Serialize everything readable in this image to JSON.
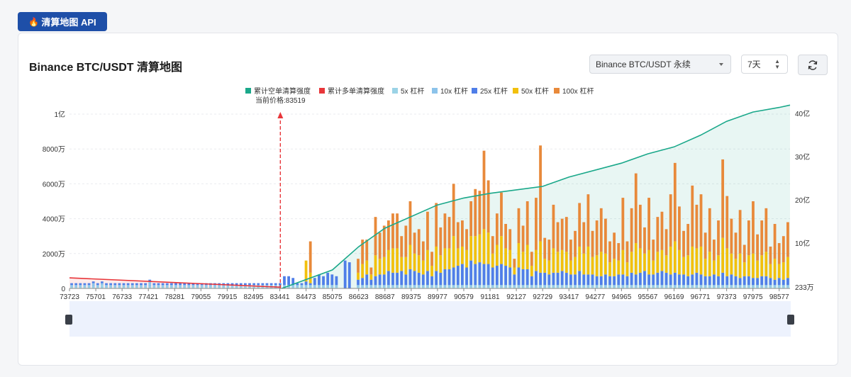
{
  "tag": {
    "label": "清算地图 API"
  },
  "card": {
    "title": "Binance BTC/USDT 清算地图",
    "exchange_select": "Binance BTC/USDT 永续",
    "period_select": "7天"
  },
  "colors": {
    "cum_short": "#1aa88a",
    "cum_long": "#e8363a",
    "lev5": "#9bd3e6",
    "lev10": "#8cc3ea",
    "lev25": "#4f7ee8",
    "lev50": "#f2c00c",
    "lev100": "#e8893a"
  },
  "chart_data": {
    "type": "bar",
    "current_price_label": "当前价格:83519",
    "current_price": 83519,
    "legend": [
      "累计空单清算强度",
      "累计多单清算强度",
      "5x 杠杆",
      "10x 杠杆",
      "25x 杠杆",
      "50x 杠杆",
      "100x 杠杆"
    ],
    "x_ticks": [
      "73723",
      "75701",
      "76733",
      "77421",
      "78281",
      "79055",
      "79915",
      "82495",
      "83441",
      "84473",
      "85075",
      "86623",
      "88687",
      "89375",
      "89977",
      "90579",
      "91181",
      "92127",
      "92729",
      "93417",
      "94277",
      "94965",
      "95567",
      "96169",
      "96771",
      "97373",
      "97975",
      "98577"
    ],
    "y_left_ticks": [
      "0",
      "2000万",
      "4000万",
      "6000万",
      "8000万",
      "1亿"
    ],
    "y_left_range": [
      0,
      100000000
    ],
    "y_right_ticks": [
      "233万",
      "10亿",
      "20亿",
      "30亿",
      "40亿"
    ],
    "y_right_range": [
      2330000,
      4000000000
    ],
    "series": [
      {
        "name": "100x 杠杆",
        "values": [
          0,
          0,
          0,
          0,
          0,
          0,
          0,
          0,
          0,
          0,
          0,
          0,
          0,
          0,
          0,
          0,
          0,
          0,
          0,
          0,
          0,
          0,
          0,
          0,
          0,
          0,
          0,
          0,
          0,
          0,
          0,
          0,
          0,
          0,
          0,
          0,
          0,
          0,
          0,
          0,
          0,
          0,
          0,
          0,
          0,
          0,
          0,
          0,
          0,
          0,
          0,
          0,
          0,
          0,
          0,
          18000000,
          0,
          0,
          0,
          0,
          0,
          0,
          0,
          0,
          0,
          0,
          8000000,
          14000000,
          12000000,
          4000000,
          22000000,
          15000000,
          18000000,
          17000000,
          20000000,
          20000000,
          12000000,
          18000000,
          25000000,
          12000000,
          15000000,
          11000000,
          22000000,
          8000000,
          25000000,
          16000000,
          20000000,
          18000000,
          30000000,
          15000000,
          15000000,
          12000000,
          20000000,
          27000000,
          25000000,
          45000000,
          30000000,
          10000000,
          18000000,
          25000000,
          14000000,
          12000000,
          5000000,
          20000000,
          15000000,
          25000000,
          8000000,
          30000000,
          55000000,
          12000000,
          12000000,
          25000000,
          17000000,
          18000000,
          20000000,
          12000000,
          15000000,
          25000000,
          18000000,
          30000000,
          15000000,
          20000000,
          25000000,
          20000000,
          12000000,
          15000000,
          10000000,
          30000000,
          12000000,
          25000000,
          40000000,
          25000000,
          15000000,
          30000000,
          12000000,
          20000000,
          22000000,
          15000000,
          30000000,
          45000000,
          25000000,
          15000000,
          18000000,
          35000000,
          25000000,
          30000000,
          15000000,
          25000000,
          12000000,
          20000000,
          45000000,
          30000000,
          20000000,
          15000000,
          25000000,
          10000000,
          20000000,
          30000000,
          15000000,
          20000000,
          25000000,
          10000000,
          20000000,
          12000000,
          15000000,
          20000000
        ]
      },
      {
        "name": "50x 杠杆",
        "values": [
          0,
          0,
          0,
          0,
          0,
          0,
          0,
          0,
          0,
          0,
          0,
          0,
          0,
          0,
          0,
          0,
          0,
          0,
          0,
          0,
          0,
          0,
          0,
          0,
          0,
          0,
          0,
          0,
          0,
          0,
          0,
          0,
          0,
          0,
          0,
          0,
          0,
          0,
          0,
          0,
          0,
          0,
          0,
          0,
          0,
          0,
          0,
          0,
          0,
          0,
          0,
          0,
          0,
          0,
          12000000,
          6000000,
          0,
          0,
          0,
          0,
          0,
          0,
          0,
          0,
          0,
          0,
          4000000,
          8000000,
          8000000,
          3000000,
          12000000,
          9000000,
          10000000,
          12000000,
          14000000,
          14000000,
          8000000,
          10000000,
          14000000,
          10000000,
          10000000,
          8000000,
          12000000,
          6000000,
          14000000,
          10000000,
          12000000,
          12000000,
          18000000,
          10000000,
          10000000,
          10000000,
          14000000,
          16000000,
          16000000,
          20000000,
          18000000,
          8000000,
          12000000,
          16000000,
          10000000,
          10000000,
          4000000,
          14000000,
          10000000,
          14000000,
          6000000,
          12000000,
          18000000,
          8000000,
          8000000,
          14000000,
          12000000,
          12000000,
          12000000,
          8000000,
          10000000,
          14000000,
          12000000,
          16000000,
          10000000,
          12000000,
          14000000,
          12000000,
          8000000,
          10000000,
          8000000,
          14000000,
          8000000,
          12000000,
          18000000,
          14000000,
          10000000,
          14000000,
          8000000,
          12000000,
          12000000,
          10000000,
          16000000,
          18000000,
          14000000,
          10000000,
          12000000,
          16000000,
          14000000,
          16000000,
          10000000,
          14000000,
          8000000,
          12000000,
          20000000,
          16000000,
          12000000,
          10000000,
          14000000,
          8000000,
          12000000,
          14000000,
          10000000,
          12000000,
          14000000,
          8000000,
          12000000,
          8000000,
          10000000,
          12000000
        ]
      },
      {
        "name": "25x 杠杆",
        "values": [
          1000000,
          1000000,
          1000000,
          1000000,
          1000000,
          1000000,
          1000000,
          1000000,
          1000000,
          1000000,
          1000000,
          1000000,
          1000000,
          1000000,
          1000000,
          1000000,
          1000000,
          1000000,
          1000000,
          1000000,
          1000000,
          1000000,
          1000000,
          1000000,
          1000000,
          1000000,
          1000000,
          1000000,
          1000000,
          1000000,
          1000000,
          1000000,
          1000000,
          1000000,
          1000000,
          1000000,
          1000000,
          1000000,
          1000000,
          1000000,
          1000000,
          1000000,
          1000000,
          1000000,
          1000000,
          1000000,
          1000000,
          1000000,
          1000000,
          5000000,
          5000000,
          4000000,
          1000000,
          1000000,
          2000000,
          1000000,
          4000000,
          6000000,
          5000000,
          7000000,
          6000000,
          5000000,
          0,
          16000000,
          15000000,
          0,
          3000000,
          4000000,
          6000000,
          3000000,
          5000000,
          6000000,
          6000000,
          8000000,
          7000000,
          7000000,
          8000000,
          6000000,
          9000000,
          8000000,
          7000000,
          6000000,
          8000000,
          5000000,
          8000000,
          7000000,
          9000000,
          9000000,
          10000000,
          11000000,
          12000000,
          10000000,
          14000000,
          12000000,
          13000000,
          12000000,
          12000000,
          10000000,
          11000000,
          12000000,
          11000000,
          10000000,
          6000000,
          10000000,
          9000000,
          9000000,
          5000000,
          8000000,
          7000000,
          7000000,
          6000000,
          7000000,
          7000000,
          8000000,
          7000000,
          6000000,
          6000000,
          8000000,
          6000000,
          6000000,
          6000000,
          5000000,
          5000000,
          6000000,
          5000000,
          5000000,
          6000000,
          6000000,
          5000000,
          7000000,
          6000000,
          7000000,
          8000000,
          6000000,
          6000000,
          7000000,
          8000000,
          7000000,
          6000000,
          7000000,
          6000000,
          6000000,
          5000000,
          6000000,
          7000000,
          6000000,
          5000000,
          5000000,
          6000000,
          5000000,
          7000000,
          5000000,
          6000000,
          5000000,
          4000000,
          5000000,
          5000000,
          4000000,
          4000000,
          5000000,
          5000000,
          4000000,
          3000000,
          4000000,
          3000000,
          4000000,
          3000000,
          4000000
        ]
      },
      {
        "name": "10x 杠杆",
        "values": [
          1000000,
          1000000,
          1000000,
          1000000,
          1000000,
          2000000,
          1000000,
          1000000,
          1000000,
          1000000,
          1000000,
          1000000,
          1000000,
          1000000,
          1000000,
          1000000,
          1000000,
          1000000,
          3000000,
          1000000,
          1000000,
          1000000,
          1000000,
          1000000,
          1000000,
          1000000,
          1000000,
          1000000,
          1000000,
          1000000,
          1000000,
          1000000,
          1000000,
          1000000,
          1000000,
          1000000,
          1000000,
          1000000,
          1000000,
          1000000,
          1000000,
          1000000,
          1000000,
          1000000,
          1000000,
          1000000,
          1000000,
          1000000,
          1000000,
          1000000,
          1000000,
          1000000,
          1000000,
          1000000,
          1000000,
          1000000,
          1000000,
          1000000,
          1000000,
          1000000,
          1000000,
          1000000,
          0,
          0,
          0,
          0,
          1000000,
          1000000,
          1000000,
          1000000,
          1000000,
          1000000,
          1000000,
          1000000,
          1000000,
          1000000,
          1000000,
          1000000,
          1000000,
          1000000,
          1000000,
          1000000,
          1000000,
          1000000,
          1000000,
          1000000,
          1000000,
          1000000,
          1000000,
          1000000,
          1000000,
          1000000,
          1000000,
          1000000,
          1000000,
          1000000,
          1000000,
          1000000,
          1000000,
          1000000,
          1000000,
          1000000,
          1000000,
          1000000,
          1000000,
          1000000,
          1000000,
          1000000,
          1000000,
          1000000,
          1000000,
          1000000,
          1000000,
          1000000,
          1000000,
          1000000,
          1000000,
          1000000,
          1000000,
          1000000,
          1000000,
          1000000,
          1000000,
          1000000,
          1000000,
          1000000,
          1000000,
          1000000,
          1000000,
          1000000,
          1000000,
          1000000,
          1000000,
          1000000,
          1000000,
          1000000,
          1000000,
          1000000,
          1000000,
          1000000,
          1000000,
          1000000,
          1000000,
          1000000,
          1000000,
          1000000,
          1000000,
          1000000,
          1000000,
          1000000,
          1000000,
          1000000,
          1000000,
          1000000,
          1000000,
          1000000,
          1000000,
          1000000,
          1000000,
          1000000,
          1000000,
          1000000,
          1000000,
          1000000,
          1000000,
          1000000
        ]
      },
      {
        "name": "5x 杠杆",
        "values": [
          1000000,
          1000000,
          1000000,
          1000000,
          1000000,
          1000000,
          1000000,
          2000000,
          1000000,
          1000000,
          1000000,
          1000000,
          1000000,
          1000000,
          1000000,
          1000000,
          1000000,
          1000000,
          1000000,
          1000000,
          1000000,
          1000000,
          1000000,
          1000000,
          1000000,
          1000000,
          1000000,
          1000000,
          1000000,
          1000000,
          1000000,
          1000000,
          1000000,
          1000000,
          1000000,
          1000000,
          1000000,
          1000000,
          1000000,
          1000000,
          1000000,
          1000000,
          1000000,
          1000000,
          1000000,
          1000000,
          1000000,
          1000000,
          1000000,
          1000000,
          1000000,
          1000000,
          1000000,
          1000000,
          1000000,
          1000000,
          1000000,
          1000000,
          1000000,
          1000000,
          1000000,
          1000000,
          0,
          0,
          0,
          0,
          1000000,
          1000000,
          1000000,
          1000000,
          1000000,
          1000000,
          1000000,
          1000000,
          1000000,
          1000000,
          1000000,
          1000000,
          1000000,
          1000000,
          1000000,
          1000000,
          1000000,
          1000000,
          1000000,
          1000000,
          1000000,
          1000000,
          1000000,
          1000000,
          1000000,
          1000000,
          1000000,
          1000000,
          1000000,
          1000000,
          1000000,
          1000000,
          1000000,
          1000000,
          1000000,
          1000000,
          1000000,
          1000000,
          1000000,
          1000000,
          1000000,
          1000000,
          1000000,
          1000000,
          1000000,
          1000000,
          1000000,
          1000000,
          1000000,
          1000000,
          1000000,
          1000000,
          1000000,
          1000000,
          1000000,
          1000000,
          1000000,
          1000000,
          1000000,
          1000000,
          1000000,
          1000000,
          1000000,
          1000000,
          1000000,
          1000000,
          1000000,
          1000000,
          1000000,
          1000000,
          1000000,
          1000000,
          1000000,
          1000000,
          1000000,
          1000000,
          1000000,
          1000000,
          1000000,
          1000000,
          1000000,
          1000000,
          1000000,
          1000000,
          1000000,
          1000000,
          1000000,
          1000000,
          1000000,
          1000000,
          1000000,
          1000000,
          1000000,
          1000000,
          1000000,
          1000000,
          1000000,
          1000000,
          1000000,
          1000000
        ]
      },
      {
        "name": "累计多单清算强度",
        "type": "line",
        "axis": "right",
        "x": [
          73723,
          83441
        ],
        "values": [
          230000000,
          30000000
        ]
      },
      {
        "name": "累计空单清算强度",
        "type": "line",
        "axis": "right",
        "x": [
          83519,
          85075,
          86623,
          88687,
          89977,
          90579,
          91181,
          92729,
          93417,
          94965,
          95567,
          96169,
          96771,
          97373,
          97975,
          98577,
          99000
        ],
        "values": [
          2330000,
          400000000,
          900000000,
          1300000000,
          1800000000,
          1950000000,
          2050000000,
          2200000000,
          2400000000,
          2700000000,
          2900000000,
          3050000000,
          3300000000,
          3600000000,
          3800000000,
          3900000000,
          3950000000
        ]
      }
    ],
    "grid": true
  }
}
